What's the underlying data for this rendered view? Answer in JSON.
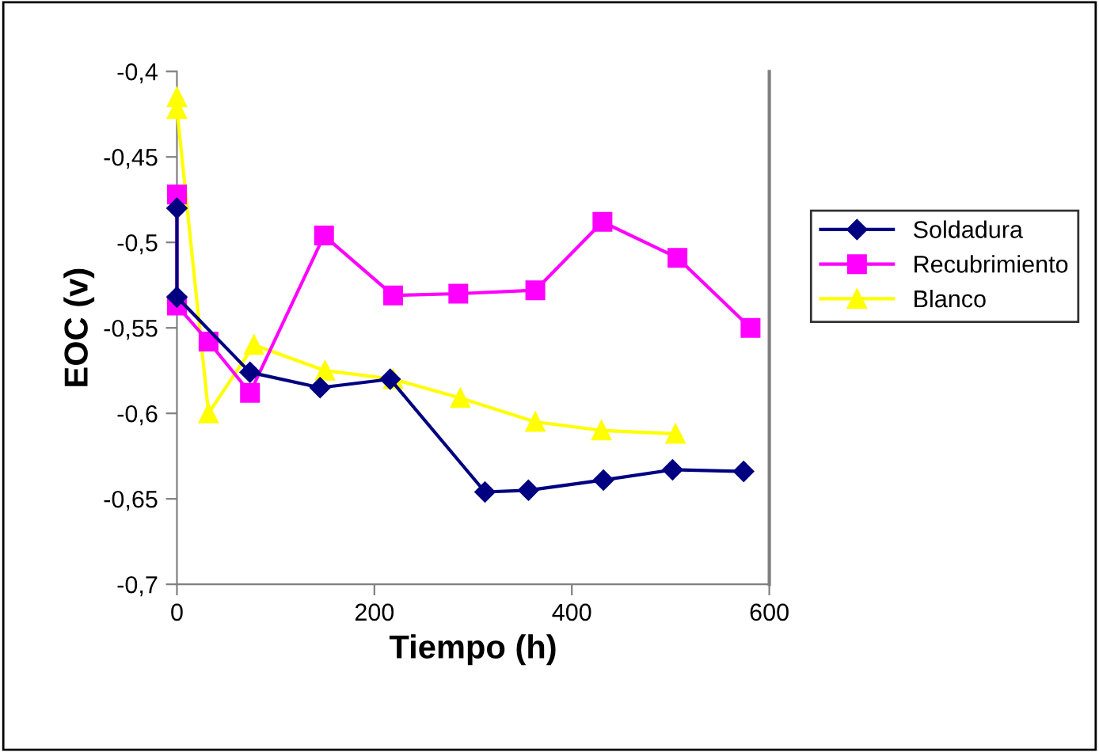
{
  "chart_data": {
    "type": "line",
    "xlabel": "Tiempo (h)",
    "ylabel": "EOC (v)",
    "xlim": [
      0,
      600
    ],
    "xticks": [
      0,
      200,
      400,
      600
    ],
    "ylim": [
      -0.7,
      -0.4
    ],
    "yticks": [
      {
        "value": -0.7,
        "label": "-0,7"
      },
      {
        "value": -0.65,
        "label": "-0,65"
      },
      {
        "value": -0.6,
        "label": "-0,6"
      },
      {
        "value": -0.55,
        "label": "-0,55"
      },
      {
        "value": -0.5,
        "label": "-0,5"
      },
      {
        "value": -0.45,
        "label": "-0,45"
      },
      {
        "value": -0.4,
        "label": "-0,4"
      }
    ],
    "grid": false,
    "legend": "right",
    "line_style": "solid",
    "series": [
      {
        "name": "Soldadura",
        "color": "#000080",
        "marker": "diamond",
        "x": [
          0,
          0,
          74,
          145,
          216,
          312,
          356,
          432,
          502,
          574
        ],
        "values": [
          -0.48,
          -0.532,
          -0.576,
          -0.585,
          -0.58,
          -0.646,
          -0.645,
          -0.639,
          -0.633,
          -0.634
        ]
      },
      {
        "name": "Recubrimiento",
        "color": "#ff00ff",
        "marker": "square",
        "x": [
          0,
          0,
          32,
          74,
          149,
          219,
          285,
          363,
          431,
          507,
          581
        ],
        "values": [
          -0.472,
          -0.537,
          -0.558,
          -0.588,
          -0.496,
          -0.531,
          -0.53,
          -0.528,
          -0.488,
          -0.509,
          -0.55
        ]
      },
      {
        "name": "Blanco",
        "color": "#ffff00",
        "marker": "triangle",
        "x": [
          0,
          0,
          32,
          78,
          150,
          219,
          287,
          363,
          430,
          505
        ],
        "values": [
          -0.415,
          -0.422,
          -0.6,
          -0.56,
          -0.575,
          -0.58,
          -0.591,
          -0.605,
          -0.61,
          -0.612
        ]
      }
    ]
  }
}
